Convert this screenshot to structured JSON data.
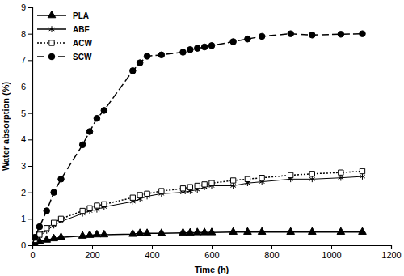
{
  "chart_data": {
    "type": "line",
    "x_label": "Time (h)",
    "y_label": "Water absorption (%)",
    "x": [
      0,
      8,
      24,
      48,
      72,
      96,
      168,
      192,
      216,
      240,
      336,
      360,
      384,
      432,
      504,
      528,
      552,
      576,
      600,
      672,
      720,
      768,
      864,
      936,
      1032,
      1104
    ],
    "series": [
      {
        "name": "PLA",
        "color": "#000000",
        "marker": "triangle",
        "line_style": "solid",
        "values": [
          0,
          0.05,
          0.15,
          0.2,
          0.25,
          0.3,
          0.35,
          0.38,
          0.4,
          0.4,
          0.42,
          0.45,
          0.45,
          0.45,
          0.47,
          0.47,
          0.48,
          0.48,
          0.48,
          0.5,
          0.5,
          0.5,
          0.5,
          0.5,
          0.5,
          0.5
        ]
      },
      {
        "name": "ABF",
        "color": "#000000",
        "marker": "asterisk",
        "line_style": "solid",
        "values": [
          0,
          0.15,
          0.35,
          0.55,
          0.75,
          0.9,
          1.2,
          1.3,
          1.35,
          1.45,
          1.65,
          1.75,
          1.85,
          1.95,
          2.0,
          2.05,
          2.1,
          2.2,
          2.25,
          2.25,
          2.35,
          2.4,
          2.5,
          2.5,
          2.55,
          2.6
        ]
      },
      {
        "name": "ACW",
        "color": "#000000",
        "marker": "square-open",
        "line_style": "dotted",
        "values": [
          0,
          0.2,
          0.4,
          0.65,
          0.85,
          1.0,
          1.3,
          1.4,
          1.5,
          1.55,
          1.8,
          1.9,
          1.95,
          2.05,
          2.15,
          2.2,
          2.25,
          2.3,
          2.35,
          2.45,
          2.5,
          2.55,
          2.65,
          2.7,
          2.75,
          2.8
        ]
      },
      {
        "name": "SCW",
        "color": "#000000",
        "marker": "circle",
        "line_style": "dashed",
        "values": [
          0,
          0.3,
          0.7,
          1.3,
          2.0,
          2.5,
          3.8,
          4.3,
          4.8,
          5.1,
          6.6,
          6.9,
          7.15,
          7.2,
          7.3,
          7.4,
          7.45,
          7.5,
          7.55,
          7.7,
          7.8,
          7.9,
          8.0,
          7.95,
          7.98,
          8.0
        ]
      }
    ],
    "xlim": [
      0,
      1200
    ],
    "xticks": [
      0,
      200,
      400,
      600,
      800,
      1000,
      1200
    ],
    "ylim": [
      0,
      9
    ],
    "yticks": [
      0,
      1,
      2,
      3,
      4,
      5,
      6,
      7,
      8,
      9
    ],
    "grid": false,
    "legend": "upper left"
  }
}
